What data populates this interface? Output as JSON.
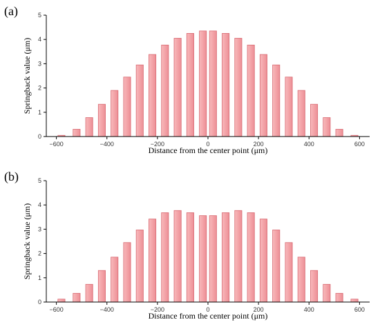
{
  "figure": {
    "panels": [
      {
        "label": "(a)"
      },
      {
        "label": "(b)"
      }
    ]
  },
  "chart_data": [
    {
      "type": "bar",
      "panel": "(a)",
      "xlabel": "Distance from the center point (μm)",
      "ylabel": "Springback value (μm)",
      "xlim": [
        -640,
        640
      ],
      "ylim": [
        0,
        5
      ],
      "xticks": [
        -600,
        -400,
        -200,
        0,
        200,
        400,
        600
      ],
      "yticks": [
        0,
        1,
        2,
        3,
        4,
        5
      ],
      "bar_width": 28,
      "grid": false,
      "bar_color": "#f4a6aa",
      "bar_edge_color": "#d96a72",
      "x": [
        -580,
        -520,
        -470,
        -420,
        -370,
        -320,
        -270,
        -220,
        -170,
        -120,
        -70,
        -20,
        20,
        70,
        120,
        170,
        220,
        270,
        320,
        370,
        420,
        470,
        520,
        580
      ],
      "values": [
        0.05,
        0.3,
        0.78,
        1.33,
        1.9,
        2.45,
        2.95,
        3.38,
        3.77,
        4.05,
        4.25,
        4.35,
        4.35,
        4.25,
        4.05,
        3.77,
        3.38,
        2.95,
        2.45,
        1.9,
        1.33,
        0.78,
        0.3,
        0.05
      ]
    },
    {
      "type": "bar",
      "panel": "(b)",
      "xlabel": "Distance from the center point (μm)",
      "ylabel": "Springback value (μm)",
      "xlim": [
        -640,
        640
      ],
      "ylim": [
        0,
        5
      ],
      "xticks": [
        -600,
        -400,
        -200,
        0,
        200,
        400,
        600
      ],
      "yticks": [
        0,
        1,
        2,
        3,
        4,
        5
      ],
      "bar_width": 28,
      "grid": false,
      "bar_color": "#f4a6aa",
      "bar_edge_color": "#d96a72",
      "x": [
        -580,
        -520,
        -470,
        -420,
        -370,
        -320,
        -270,
        -220,
        -170,
        -120,
        -70,
        -20,
        20,
        70,
        120,
        170,
        220,
        270,
        320,
        370,
        420,
        470,
        520,
        580
      ],
      "values": [
        0.12,
        0.36,
        0.73,
        1.3,
        1.85,
        2.45,
        2.97,
        3.42,
        3.68,
        3.77,
        3.68,
        3.56,
        3.56,
        3.68,
        3.77,
        3.68,
        3.42,
        2.97,
        2.45,
        1.85,
        1.3,
        0.73,
        0.36,
        0.12
      ]
    }
  ]
}
